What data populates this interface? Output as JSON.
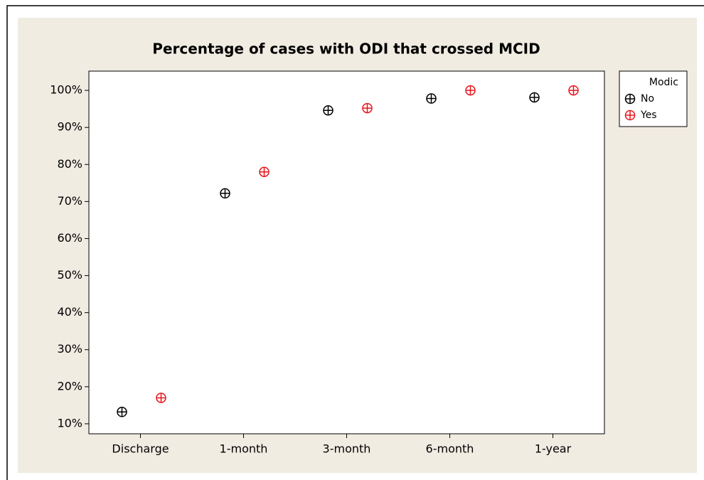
{
  "chart_data": {
    "type": "scatter",
    "title": "Percentage of cases with ODI that crossed MCID",
    "categories": [
      "Discharge",
      "1-month",
      "3-month",
      "6-month",
      "1-year"
    ],
    "legend_title": "Modic",
    "series": [
      {
        "name": "No",
        "color": "#000000",
        "values": [
          13.2,
          72.2,
          94.6,
          97.8,
          98.1
        ]
      },
      {
        "name": "Yes",
        "color": "#e8141c",
        "values": [
          17.0,
          78.0,
          95.2,
          100,
          100
        ]
      }
    ],
    "ylim": [
      7.3,
      105.2
    ],
    "yticks": [
      {
        "value": 10,
        "label": "10%"
      },
      {
        "value": 20,
        "label": "20%"
      },
      {
        "value": 30,
        "label": "30%"
      },
      {
        "value": 40,
        "label": "40%"
      },
      {
        "value": 50,
        "label": "50%"
      },
      {
        "value": 60,
        "label": "60%"
      },
      {
        "value": 70,
        "label": "70%"
      },
      {
        "value": 80,
        "label": "80%"
      },
      {
        "value": 90,
        "label": "90%"
      },
      {
        "value": 100,
        "label": "100%"
      }
    ],
    "legend": "right",
    "grid": false
  }
}
